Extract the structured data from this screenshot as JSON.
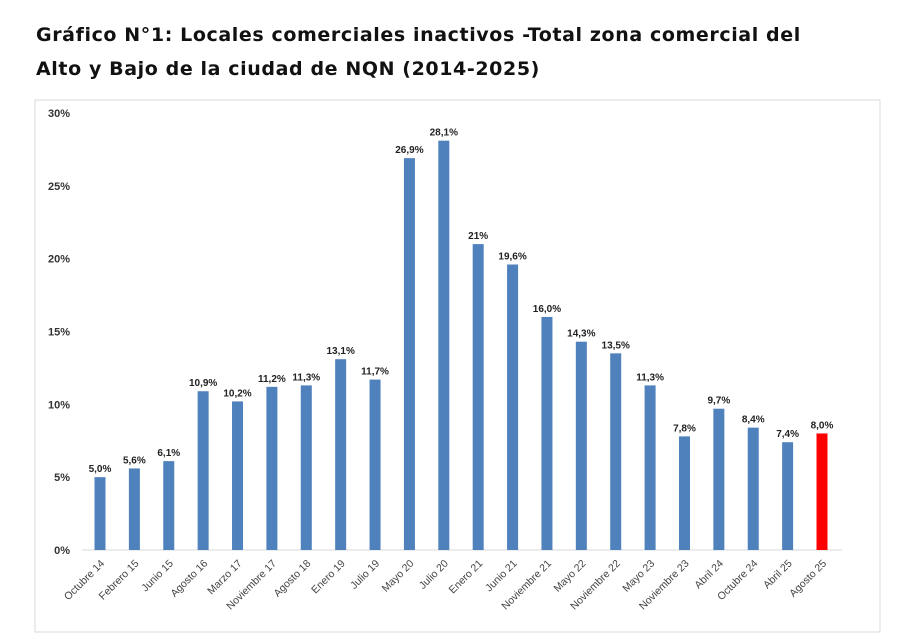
{
  "chart_data": {
    "type": "bar",
    "title": "Gráfico N°1: Locales comerciales inactivos -Total zona comercial del Alto y Bajo de la ciudad de NQN (2014-2025)",
    "xlabel": "",
    "ylabel": "",
    "ylim": [
      0,
      30
    ],
    "yticks": [
      "0%",
      "5%",
      "10%",
      "15%",
      "20%",
      "25%",
      "30%"
    ],
    "grid": false,
    "categories": [
      "Octubre 14",
      "Febrero 15",
      "Junio 15",
      "Agosto 16",
      "Marzo 17",
      "Noviembre 17",
      "Agosto 18",
      "Enero 19",
      "Julio 19",
      "Mayo 20",
      "Julio 20",
      "Enero 21",
      "Junio 21",
      "Noviembre 21",
      "Mayo 22",
      "Noviembre 22",
      "Mayo 23",
      "Noviembre 23",
      "Abril 24",
      "Octubre 24",
      "Abril 25",
      "Agosto 25"
    ],
    "values": [
      5.0,
      5.6,
      6.1,
      10.9,
      10.2,
      11.2,
      11.3,
      13.1,
      11.7,
      26.9,
      28.1,
      21,
      19.6,
      16.0,
      14.3,
      13.5,
      11.3,
      7.8,
      9.7,
      8.4,
      7.4,
      8.0
    ],
    "data_labels": [
      "5,0%",
      "5,6%",
      "6,1%",
      "10,9%",
      "10,2%",
      "11,2%",
      "11,3%",
      "13,1%",
      "11,7%",
      "26,9%",
      "28,1%",
      "21%",
      "19,6%",
      "16,0%",
      "14,3%",
      "13,5%",
      "11,3%",
      "7,8%",
      "9,7%",
      "8,4%",
      "7,4%",
      "8,0%"
    ],
    "colors": {
      "bar": "#4f81bd",
      "highlight": "#ff0000",
      "highlight_category": "Agosto 25"
    }
  }
}
